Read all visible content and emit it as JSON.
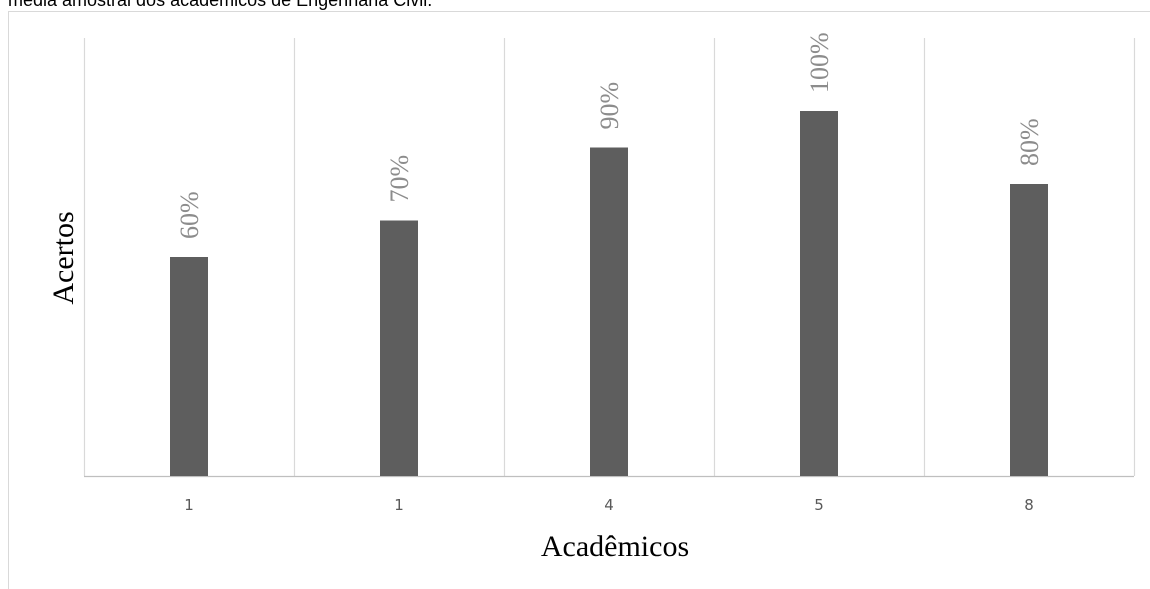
{
  "caption": "média amostral dos acadêmicos de Engenharia Civil.",
  "chart_data": {
    "type": "bar",
    "categories": [
      "1",
      "1",
      "4",
      "5",
      "8"
    ],
    "values": [
      60,
      70,
      90,
      100,
      80
    ],
    "data_labels": [
      "60%",
      "70%",
      "90%",
      "100%",
      "80%"
    ],
    "xlabel": "Acadêmicos",
    "ylabel": "Acertos",
    "ylim": [
      0,
      120
    ],
    "grid": "vertical category separators",
    "legend": "none",
    "colors": {
      "bar": "#5e5e5e",
      "data_label": "#8c8c8c",
      "gridline": "#d9d9d9",
      "axis": "#bfbfbf",
      "tick_label": "#595959",
      "axis_title": "#000000"
    }
  }
}
